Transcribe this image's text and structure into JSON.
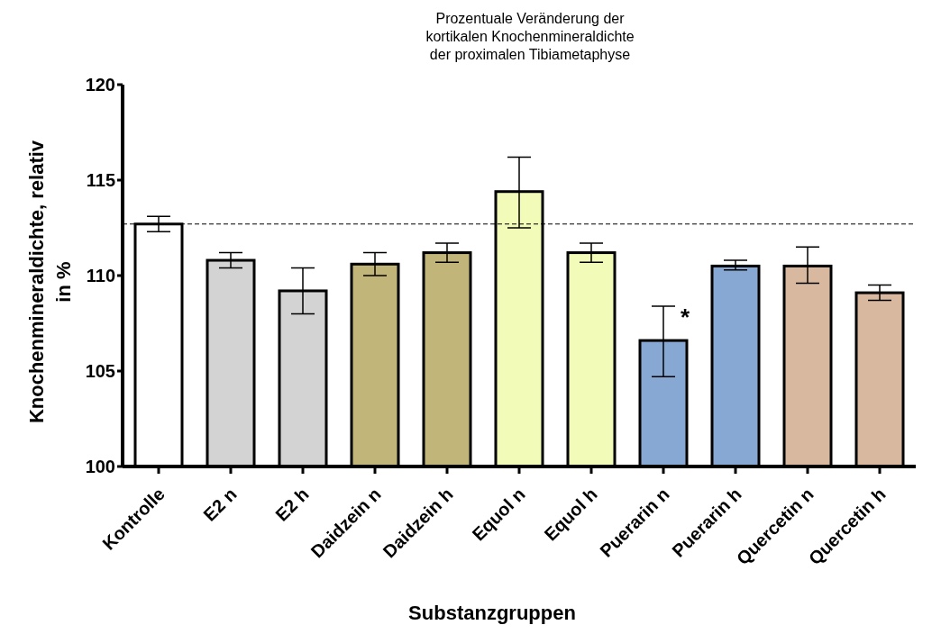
{
  "chart_data": {
    "type": "bar",
    "title": "Prozentuale Veränderung der\nkortikalen Knochenmineraldichte\nder proximalen Tibiametaphyse",
    "xlabel": "Substanzgruppen",
    "ylabel": "Knochenmineraldichte, relativ\nin %",
    "categories": [
      "Kontrolle",
      "E2 n",
      "E2 h",
      "Daidzein n",
      "Daidzein h",
      "Equol n",
      "Equol h",
      "Puerarin n",
      "Puerarin h",
      "Quercetin n",
      "Quercetin h"
    ],
    "values": [
      112.7,
      110.8,
      109.2,
      110.6,
      111.2,
      114.4,
      111.2,
      106.6,
      110.5,
      110.5,
      109.1
    ],
    "errors": [
      [
        112.3,
        113.1
      ],
      [
        110.4,
        111.2
      ],
      [
        108.0,
        110.4
      ],
      [
        110.0,
        111.2
      ],
      [
        110.7,
        111.7
      ],
      [
        112.5,
        116.2
      ],
      [
        110.7,
        111.7
      ],
      [
        104.7,
        108.4
      ],
      [
        110.3,
        110.8
      ],
      [
        109.6,
        111.5
      ],
      [
        108.7,
        109.5
      ]
    ],
    "colors": [
      "#ffffff",
      "#d3d3d3",
      "#d3d3d3",
      "#c2b57a",
      "#c2b57a",
      "#f2fbb8",
      "#f2fbb8",
      "#88a8d4",
      "#88a8d4",
      "#d9b8a0",
      "#d9b8a0"
    ],
    "ylim": [
      100,
      120
    ],
    "yticks": [
      100,
      105,
      110,
      115,
      120
    ],
    "grid": false,
    "legend": false,
    "ref_lines": [
      {
        "axis": "y",
        "value": 112.7,
        "line_style": "dashed",
        "color": "#000000"
      }
    ],
    "annotations": [
      {
        "text": "*",
        "x": "Puerarin n",
        "y": 108.4
      }
    ]
  }
}
